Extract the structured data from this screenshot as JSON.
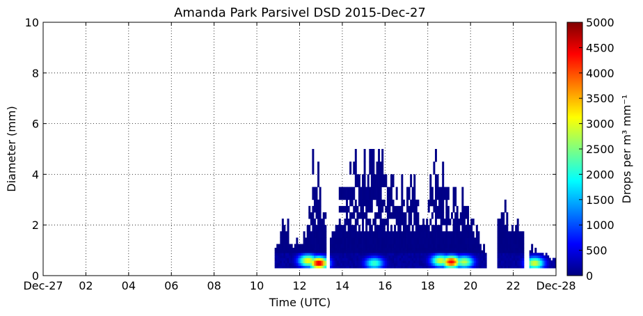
{
  "chart_data": {
    "type": "heatmap",
    "title": "Amanda Park Parsivel DSD 2015-Dec-27",
    "xlabel": "Time (UTC)",
    "ylabel": "Diameter (mm)",
    "colorbar_label": "Drops per m³ mm⁻¹",
    "colormap": "jet",
    "grid": true,
    "xlim_hours": [
      0,
      24
    ],
    "ylim": [
      0,
      10
    ],
    "x_ticks": [
      {
        "hour": 0,
        "label": "Dec-27"
      },
      {
        "hour": 2,
        "label": "02"
      },
      {
        "hour": 4,
        "label": "04"
      },
      {
        "hour": 6,
        "label": "06"
      },
      {
        "hour": 8,
        "label": "08"
      },
      {
        "hour": 10,
        "label": "10"
      },
      {
        "hour": 12,
        "label": "12"
      },
      {
        "hour": 14,
        "label": "14"
      },
      {
        "hour": 16,
        "label": "16"
      },
      {
        "hour": 18,
        "label": "18"
      },
      {
        "hour": 20,
        "label": "20"
      },
      {
        "hour": 22,
        "label": "22"
      },
      {
        "hour": 24,
        "label": "Dec-28"
      }
    ],
    "y_ticks": [
      0,
      2,
      4,
      6,
      8,
      10
    ],
    "colorbar_range": [
      0,
      5000
    ],
    "colorbar_ticks": [
      0,
      500,
      1000,
      1500,
      2000,
      2500,
      3000,
      3500,
      4000,
      4500,
      5000
    ],
    "diameter_bins_mm": [
      0.3,
      0.4,
      0.5,
      0.6,
      0.7,
      0.8,
      0.9,
      1.0,
      1.1,
      1.25,
      1.5,
      1.75,
      2.0,
      2.25,
      2.5,
      2.75,
      3.0,
      3.5,
      4.0,
      4.5,
      5.0
    ],
    "rain_periods_hours": [
      [
        10.8,
        13.25
      ],
      [
        13.4,
        20.75
      ],
      [
        21.25,
        22.5
      ],
      [
        22.75,
        24.0
      ]
    ],
    "extent_profile": [
      {
        "hour": 10.9,
        "max_diameter_mm": 1.0
      },
      {
        "hour": 11.3,
        "max_diameter_mm": 2.5
      },
      {
        "hour": 11.7,
        "max_diameter_mm": 1.25
      },
      {
        "hour": 12.2,
        "max_diameter_mm": 1.5
      },
      {
        "hour": 12.5,
        "max_diameter_mm": 3.0
      },
      {
        "hour": 12.6,
        "max_diameter_mm": 4.5
      },
      {
        "hour": 13.0,
        "max_diameter_mm": 3.5
      },
      {
        "hour": 13.5,
        "max_diameter_mm": 1.5
      },
      {
        "hour": 14.0,
        "max_diameter_mm": 3.5
      },
      {
        "hour": 14.5,
        "max_diameter_mm": 5.0
      },
      {
        "hour": 15.2,
        "max_diameter_mm": 4.5
      },
      {
        "hour": 15.9,
        "max_diameter_mm": 5.0
      },
      {
        "hour": 16.5,
        "max_diameter_mm": 4.0
      },
      {
        "hour": 17.2,
        "max_diameter_mm": 4.0
      },
      {
        "hour": 17.8,
        "max_diameter_mm": 2.5
      },
      {
        "hour": 18.4,
        "max_diameter_mm": 4.5
      },
      {
        "hour": 19.0,
        "max_diameter_mm": 3.5
      },
      {
        "hour": 19.6,
        "max_diameter_mm": 3.0
      },
      {
        "hour": 20.3,
        "max_diameter_mm": 2.0
      },
      {
        "hour": 20.7,
        "max_diameter_mm": 1.0
      },
      {
        "hour": 21.3,
        "max_diameter_mm": 3.5
      },
      {
        "hour": 21.8,
        "max_diameter_mm": 2.5
      },
      {
        "hour": 22.3,
        "max_diameter_mm": 2.25
      },
      {
        "hour": 23.0,
        "max_diameter_mm": 1.1
      },
      {
        "hour": 23.8,
        "max_diameter_mm": 0.7
      }
    ],
    "intensity_peaks": [
      {
        "hour": 12.9,
        "diameter_mm": 0.5,
        "value": 4600
      },
      {
        "hour": 12.4,
        "diameter_mm": 0.6,
        "value": 3200
      },
      {
        "hour": 15.5,
        "diameter_mm": 0.5,
        "value": 2200
      },
      {
        "hour": 19.1,
        "diameter_mm": 0.55,
        "value": 4400
      },
      {
        "hour": 18.6,
        "diameter_mm": 0.6,
        "value": 3000
      },
      {
        "hour": 19.7,
        "diameter_mm": 0.55,
        "value": 2800
      },
      {
        "hour": 23.0,
        "diameter_mm": 0.5,
        "value": 3000
      }
    ]
  }
}
